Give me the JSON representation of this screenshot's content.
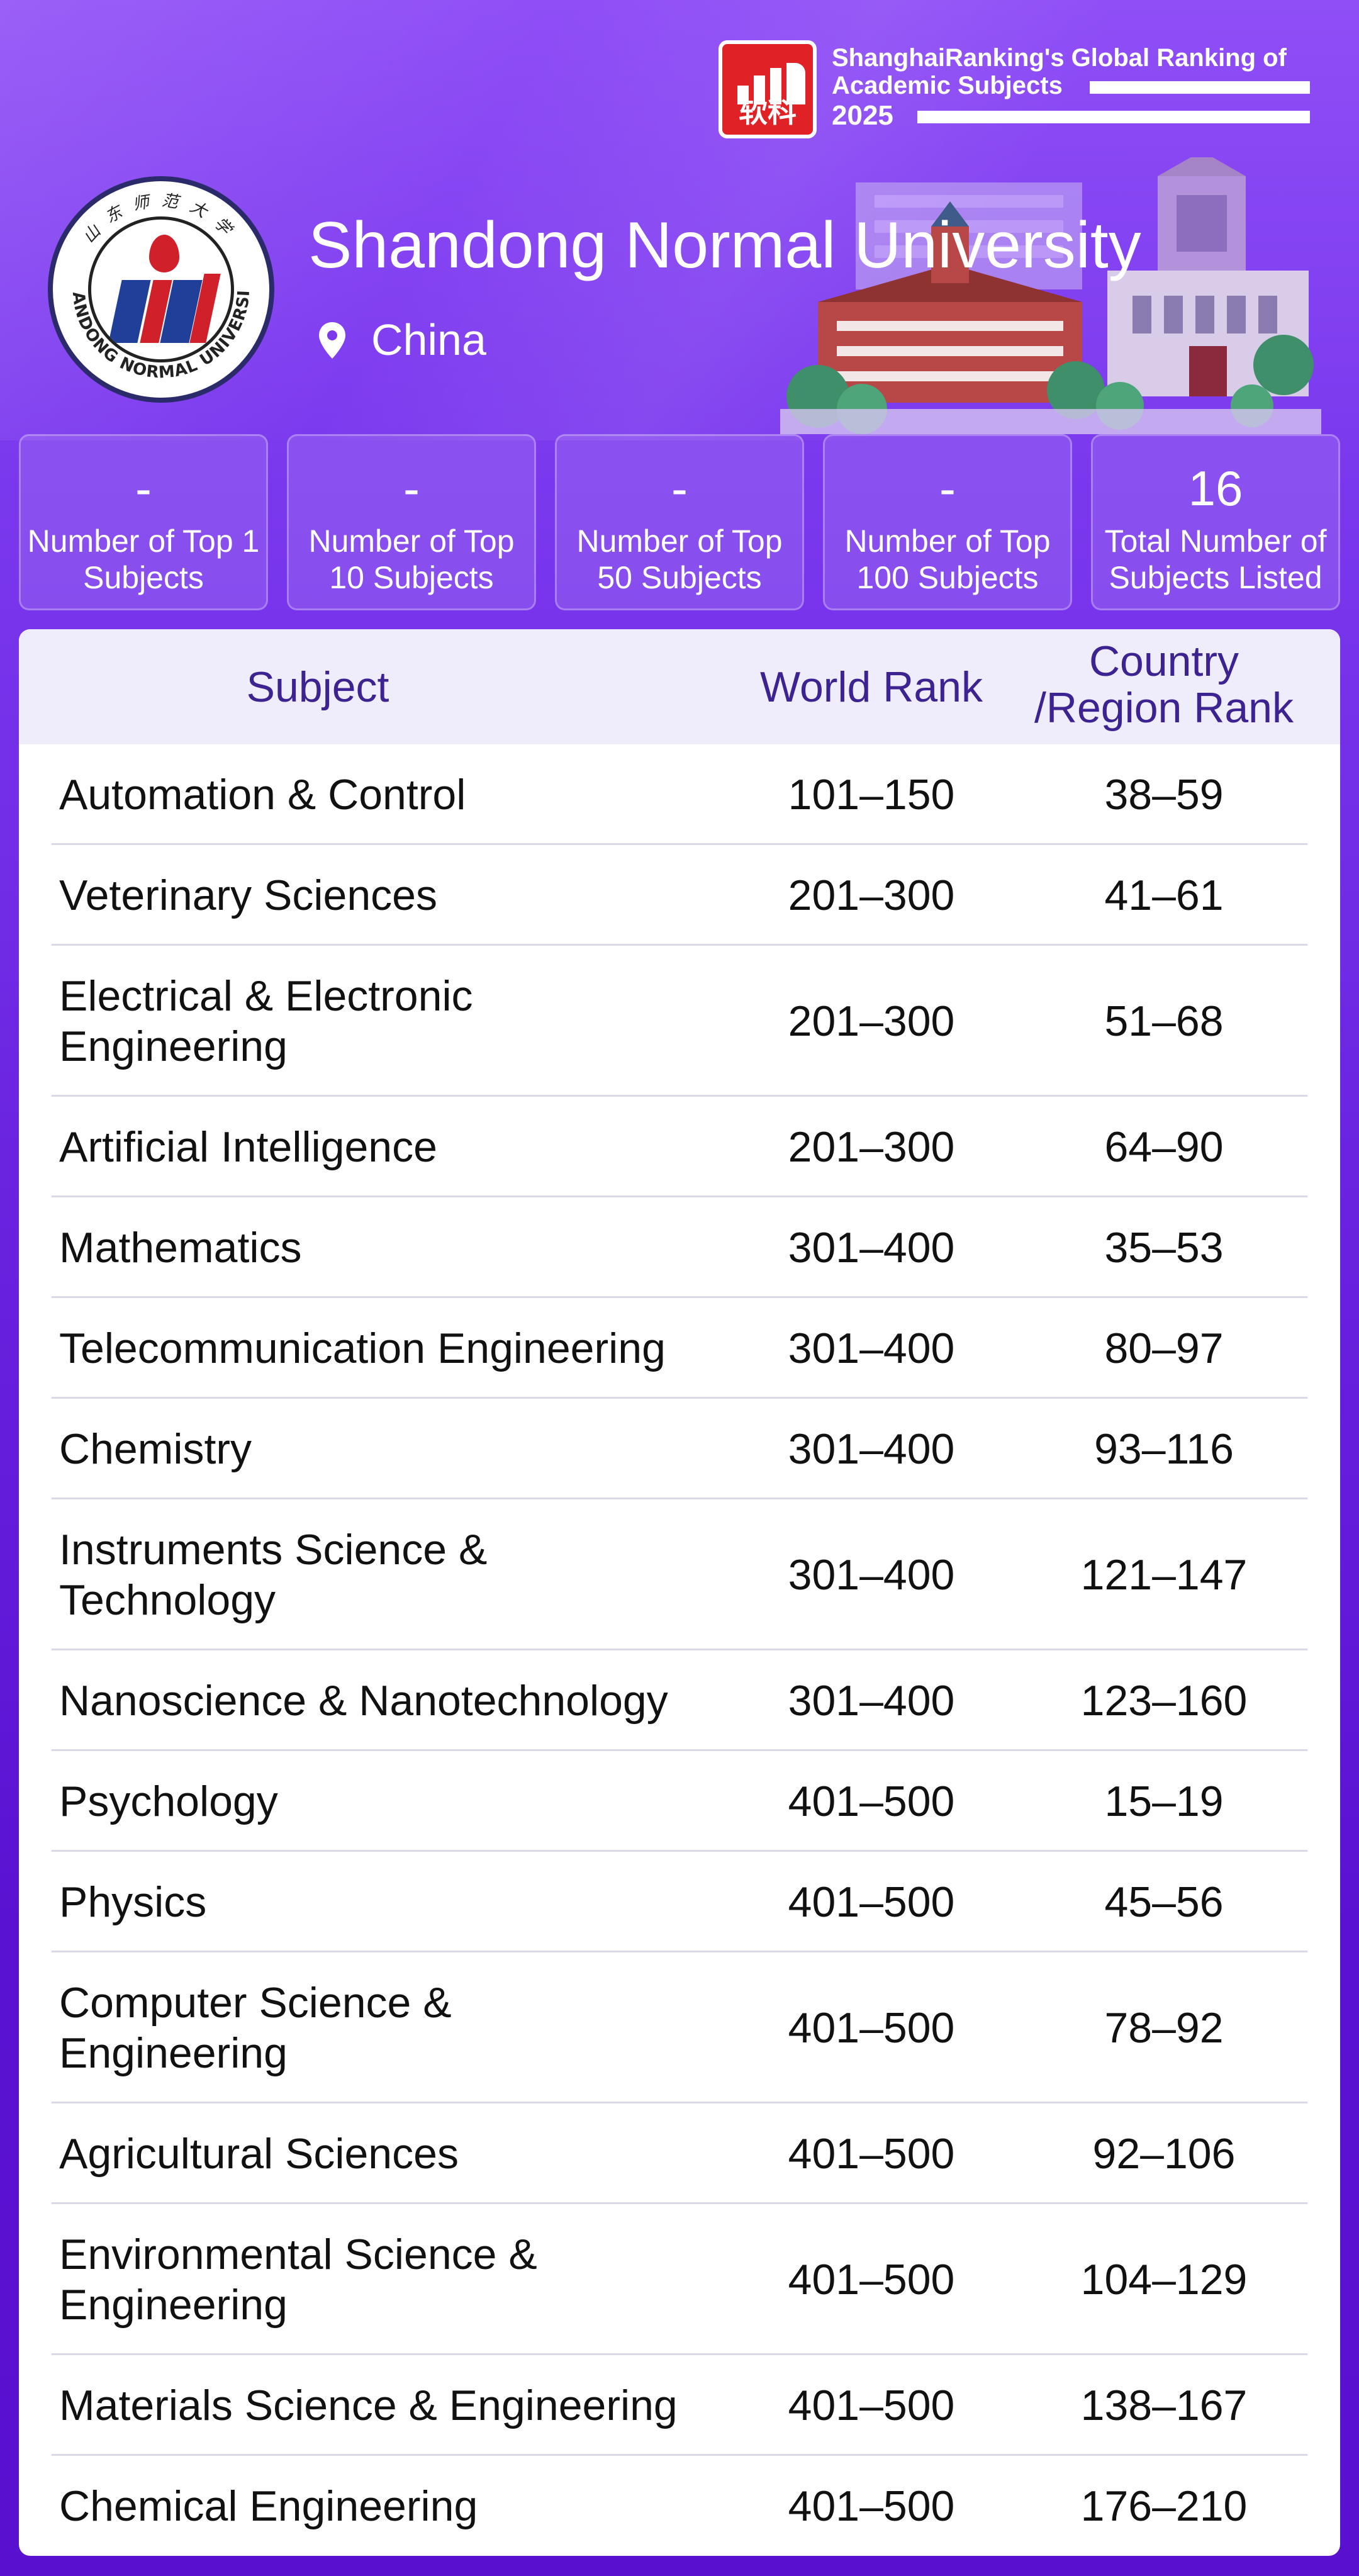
{
  "brand": {
    "logo_icon": "shanghairanking-logo",
    "logo_cn": "软科",
    "line1": "ShanghaiRanking's Global Ranking of",
    "line2": "Academic Subjects",
    "year": "2025",
    "accent": "#e02226"
  },
  "university": {
    "name": "Shandong Normal University",
    "country": "China",
    "location_icon": "map-pin-icon"
  },
  "stats": [
    {
      "value": "-",
      "label": "Number of Top 1 Subjects"
    },
    {
      "value": "-",
      "label": "Number of Top 10 Subjects"
    },
    {
      "value": "-",
      "label": "Number of Top 50 Subjects"
    },
    {
      "value": "-",
      "label": "Number of Top 100 Subjects"
    },
    {
      "value": "16",
      "label": "Total Number of Subjects Listed"
    }
  ],
  "table": {
    "headers": {
      "subject": "Subject",
      "world_rank": "World Rank",
      "country_rank": "Country /Region Rank"
    },
    "rows": [
      {
        "subject": "Automation & Control",
        "world": "101-150",
        "country": "38-59"
      },
      {
        "subject": "Veterinary Sciences",
        "world": "201-300",
        "country": "41-61"
      },
      {
        "subject": "Electrical & Electronic Engineering",
        "world": "201-300",
        "country": "51-68"
      },
      {
        "subject": "Artificial Intelligence",
        "world": "201-300",
        "country": "64-90"
      },
      {
        "subject": "Mathematics",
        "world": "301-400",
        "country": "35-53"
      },
      {
        "subject": "Telecommunication Engineering",
        "world": "301-400",
        "country": "80-97"
      },
      {
        "subject": "Chemistry",
        "world": "301-400",
        "country": "93-116"
      },
      {
        "subject": "Instruments Science & Technology",
        "world": "301-400",
        "country": "121-147"
      },
      {
        "subject": "Nanoscience & Nanotechnology",
        "world": "301-400",
        "country": "123-160"
      },
      {
        "subject": "Psychology",
        "world": "401-500",
        "country": "15-19"
      },
      {
        "subject": "Physics",
        "world": "401-500",
        "country": "45-56"
      },
      {
        "subject": "Computer Science & Engineering",
        "world": "401-500",
        "country": "78-92"
      },
      {
        "subject": "Agricultural Sciences",
        "world": "401-500",
        "country": "92-106"
      },
      {
        "subject": "Environmental Science & Engineering",
        "world": "401-500",
        "country": "104-129"
      },
      {
        "subject": "Materials Science & Engineering",
        "world": "401-500",
        "country": "138-167"
      },
      {
        "subject": "Chemical Engineering",
        "world": "401-500",
        "country": "176-210"
      }
    ]
  }
}
